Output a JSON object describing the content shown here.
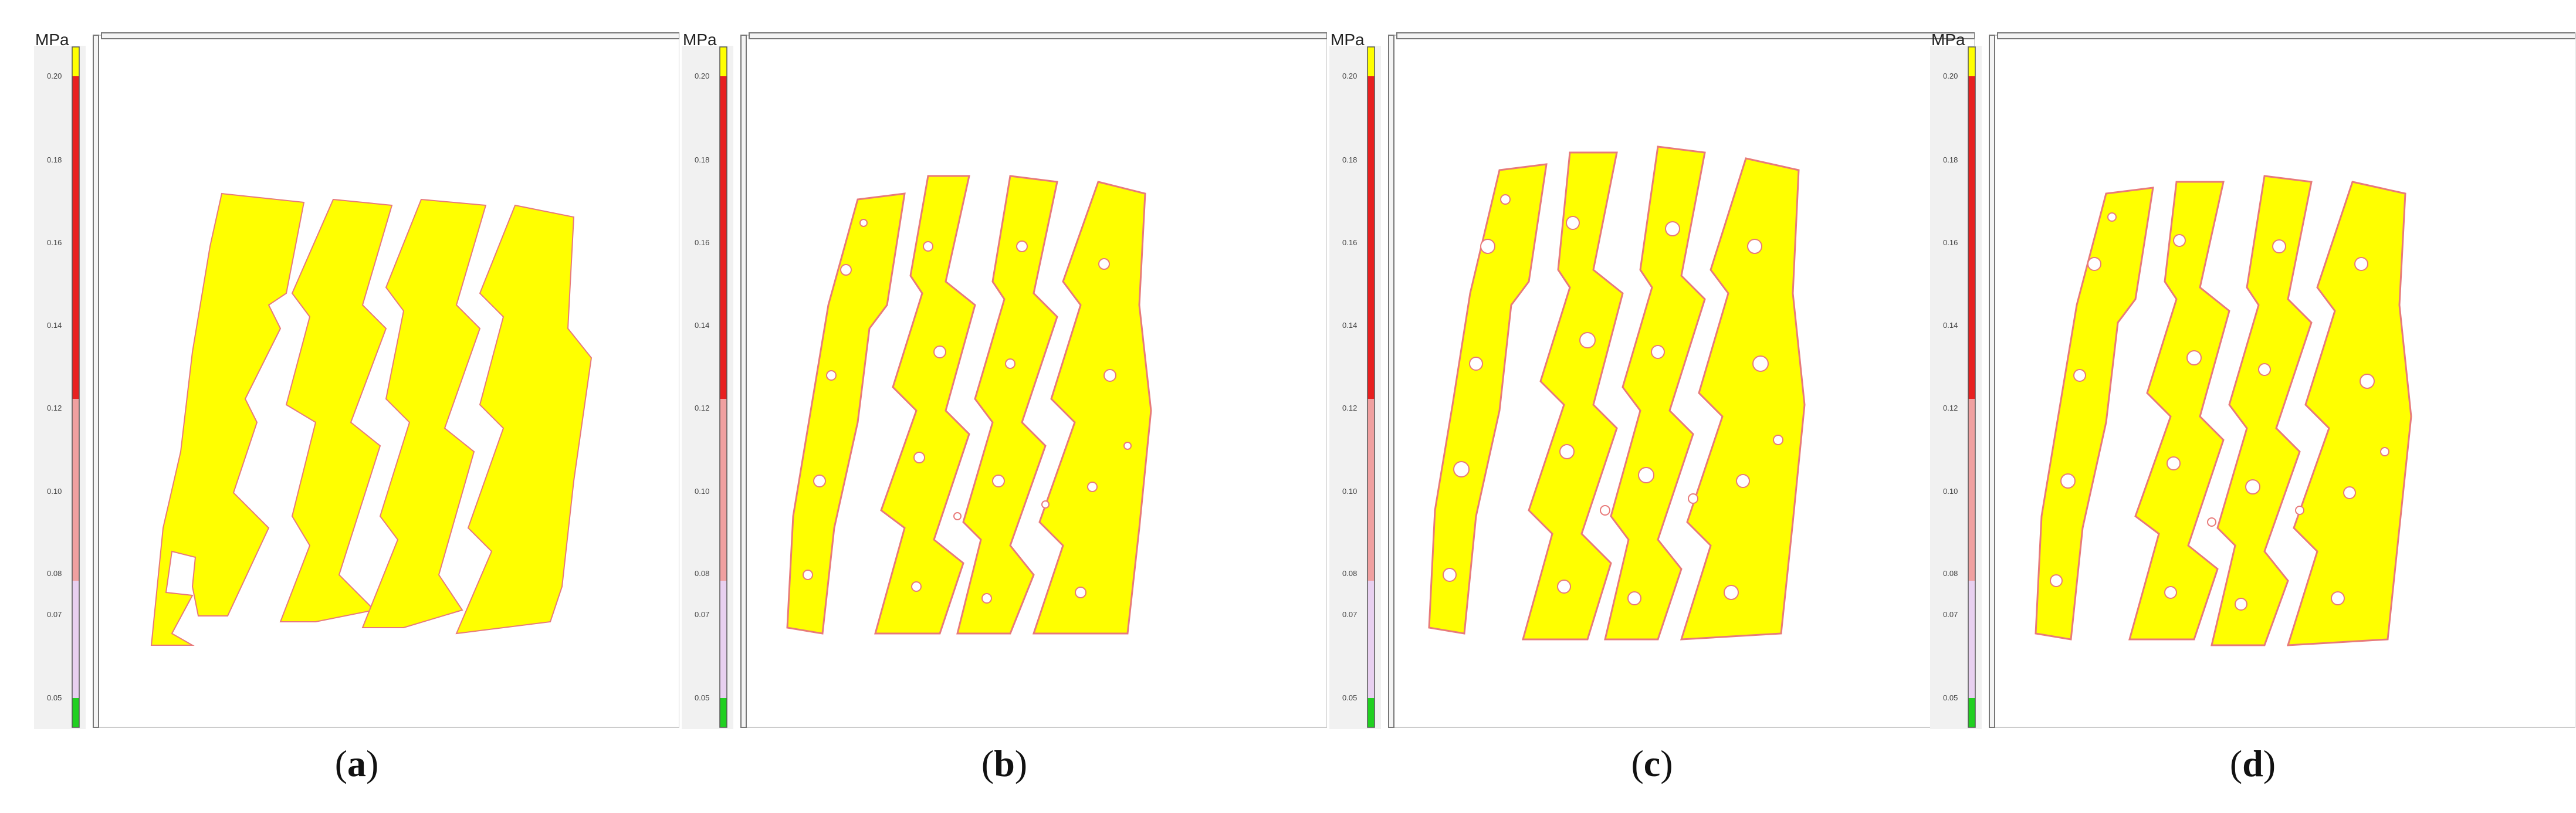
{
  "legend": {
    "unit": "MPa",
    "ticks": [
      "0.20",
      "0.18",
      "0.16",
      "0.14",
      "0.12",
      "0.10",
      "0.08",
      "0.07",
      "0.05"
    ]
  },
  "colors": {
    "contact": "#ffff00",
    "edge": "#e87a7a",
    "scale_top": "#ffff00",
    "scale_red": "#e82020",
    "scale_pink": "#f0a0a0",
    "scale_lavender": "#e8d0f0",
    "scale_green": "#20d020"
  },
  "panels": [
    {
      "label": "a",
      "pattern": "solid"
    },
    {
      "label": "b",
      "pattern": "speckled"
    },
    {
      "label": "c",
      "pattern": "speckled"
    },
    {
      "label": "d",
      "pattern": "speckled"
    }
  ]
}
